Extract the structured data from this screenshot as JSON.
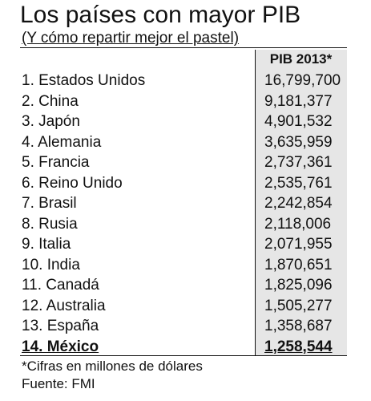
{
  "title": "Los países con mayor PIB",
  "subtitle": "(Y cómo repartir mejor el pastel)",
  "colors": {
    "text": "#111111",
    "column_shade": "#e6e6e6",
    "background": "#ffffff"
  },
  "chart_data": {
    "type": "table",
    "column_header": "PIB 2013*",
    "highlighted_row": 13,
    "rows": [
      {
        "label": "1. Estados Unidos",
        "value": "16,799,700"
      },
      {
        "label": "2. China",
        "value": "9,181,377"
      },
      {
        "label": "3. Japón",
        "value": "4,901,532"
      },
      {
        "label": "4. Alemania",
        "value": "3,635,959"
      },
      {
        "label": "5. Francia",
        "value": "2,737,361"
      },
      {
        "label": "6. Reino Unido",
        "value": "2,535,761"
      },
      {
        "label": "7. Brasil",
        "value": "2,242,854"
      },
      {
        "label": "8. Rusia",
        "value": "2,118,006"
      },
      {
        "label": "9. Italia",
        "value": "2,071,955"
      },
      {
        "label": "10.  India",
        "value": "1,870,651"
      },
      {
        "label": "11. Canadá",
        "value": "1,825,096"
      },
      {
        "label": "12. Australia",
        "value": "1,505,277"
      },
      {
        "label": "13. España",
        "value": "1,358,687"
      },
      {
        "label": "14. México",
        "value": "1,258,544"
      }
    ]
  },
  "footnote": "*Cifras en millones de dólares",
  "source": "Fuente: FMI"
}
